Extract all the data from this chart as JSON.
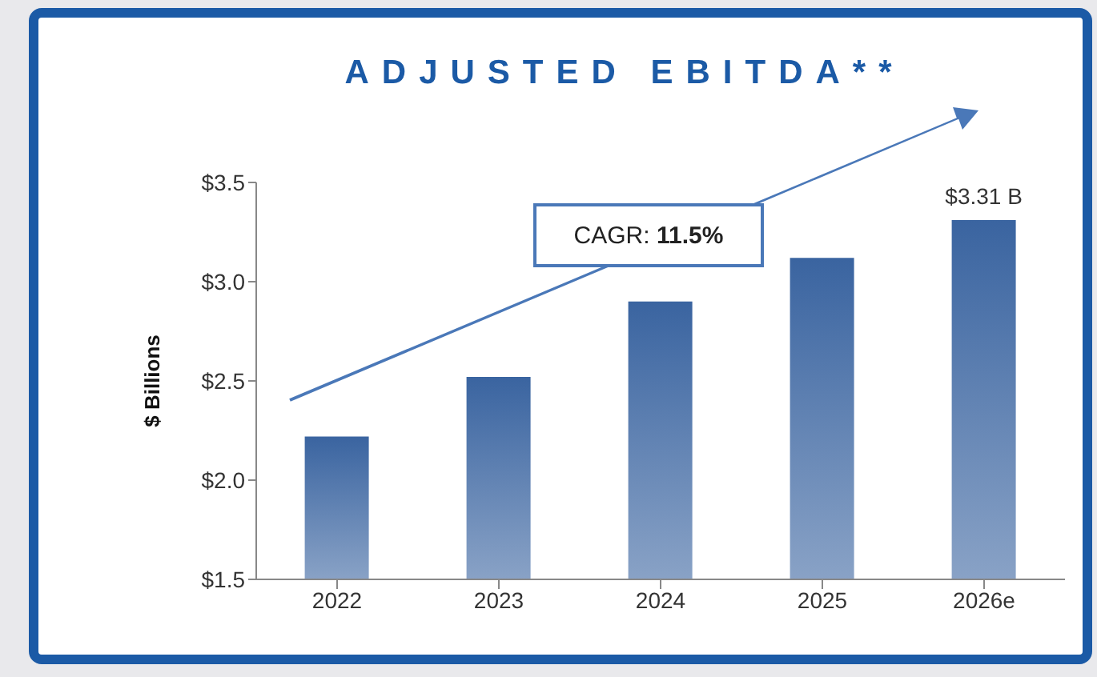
{
  "chart_data": {
    "type": "bar",
    "title": "ADJUSTED EBITDA**",
    "ylabel": "$ Billions",
    "categories": [
      "2022",
      "2023",
      "2024",
      "2025",
      "2026e"
    ],
    "values": [
      2.22,
      2.52,
      2.9,
      3.12,
      3.31
    ],
    "value_labels": [
      null,
      null,
      null,
      null,
      "$3.31 B"
    ],
    "color": "#3a64a0",
    "ylim": [
      1.5,
      3.5
    ],
    "yticks": [
      {
        "value": 1.5,
        "label": "$1.5"
      },
      {
        "value": 2,
        "label": "$2.0"
      },
      {
        "value": 2.5,
        "label": "$2.5"
      },
      {
        "value": 3,
        "label": "$3.0"
      },
      {
        "value": 3.5,
        "label": "$3.5"
      }
    ],
    "annotations": [
      "CAGR: 11.5%"
    ],
    "grid": false,
    "legend": false
  }
}
